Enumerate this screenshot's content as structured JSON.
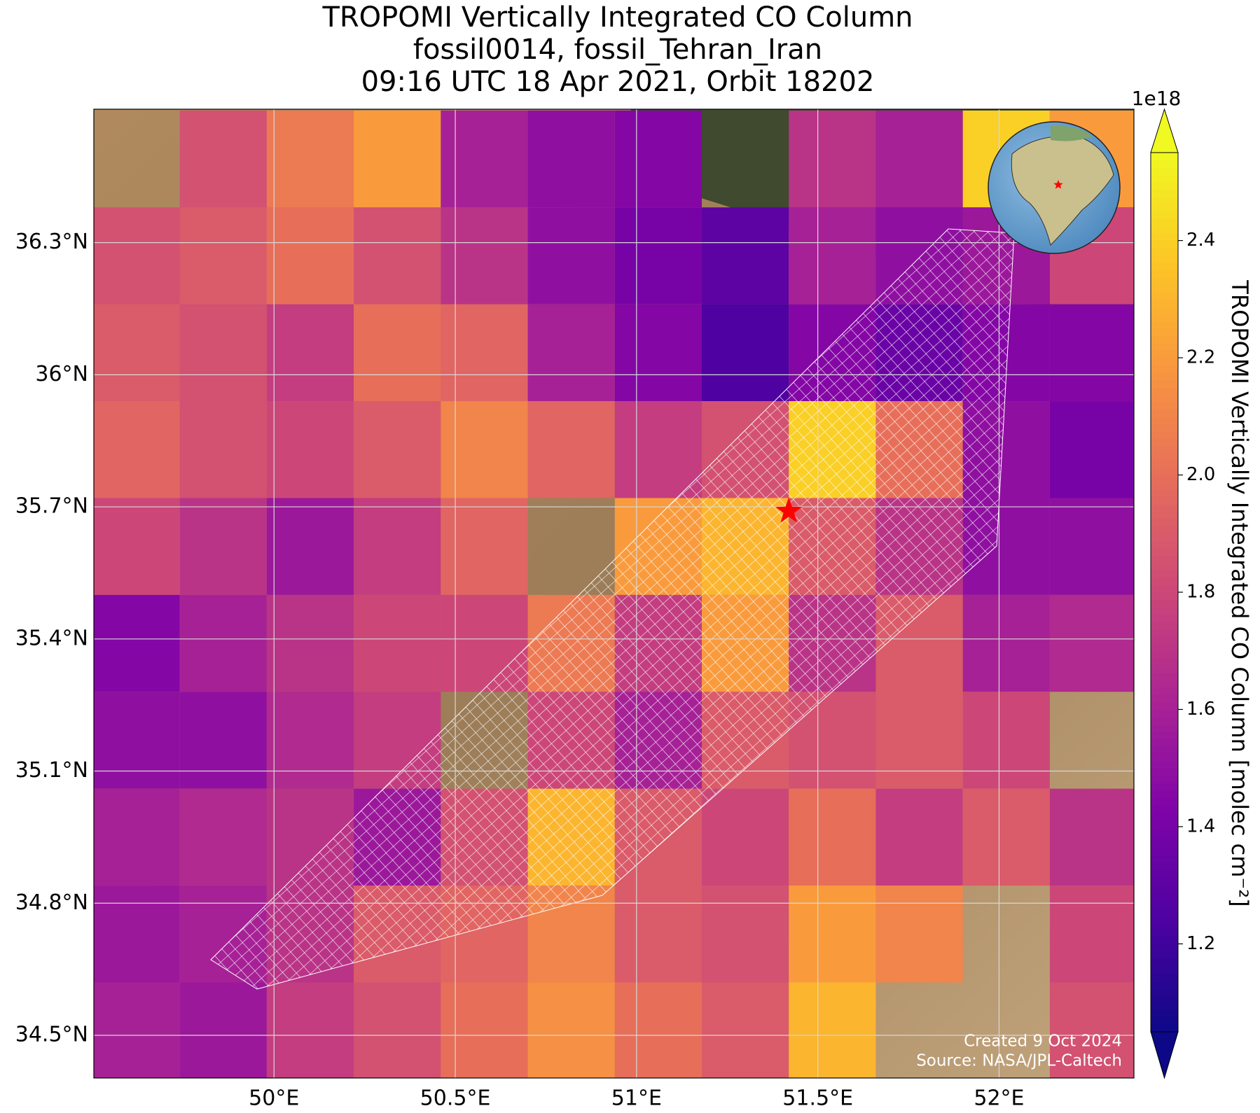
{
  "chart_data": {
    "type": "heatmap",
    "title": [
      "TROPOMI Vertically Integrated CO Column",
      "fossil0014, fossil_Tehran_Iran",
      "09:16 UTC 18 Apr 2021, Orbit 18202"
    ],
    "x": [
      49.62,
      49.86,
      50.1,
      50.34,
      50.58,
      50.82,
      51.06,
      51.3,
      51.54,
      51.78,
      52.02,
      52.26
    ],
    "y": [
      36.49,
      36.27,
      36.05,
      35.83,
      35.61,
      35.39,
      35.17,
      34.95,
      34.73,
      34.51
    ],
    "values": [
      [
        null,
        1.85,
        2.05,
        2.2,
        1.6,
        1.5,
        1.45,
        null,
        1.7,
        1.6,
        2.4,
        2.2
      ],
      [
        1.85,
        1.9,
        2.0,
        1.85,
        1.7,
        1.5,
        1.4,
        1.3,
        1.6,
        1.5,
        1.55,
        1.8
      ],
      [
        1.9,
        1.85,
        1.75,
        2.0,
        1.95,
        1.6,
        1.45,
        1.25,
        1.45,
        1.35,
        1.45,
        1.45
      ],
      [
        1.95,
        1.85,
        1.8,
        1.9,
        2.1,
        1.95,
        1.75,
        1.85,
        2.4,
        2.0,
        1.5,
        1.4
      ],
      [
        1.8,
        1.7,
        1.55,
        1.75,
        1.95,
        null,
        2.2,
        2.3,
        1.9,
        1.7,
        1.5,
        1.5
      ],
      [
        1.45,
        1.6,
        1.7,
        1.8,
        1.8,
        2.05,
        1.75,
        2.2,
        1.7,
        1.9,
        1.6,
        1.65
      ],
      [
        1.5,
        1.5,
        1.65,
        1.75,
        null,
        1.8,
        1.6,
        1.9,
        1.85,
        1.9,
        1.8,
        null
      ],
      [
        1.6,
        1.65,
        1.7,
        1.55,
        1.85,
        2.3,
        1.9,
        1.8,
        2.0,
        1.75,
        1.9,
        1.7
      ],
      [
        1.55,
        1.6,
        1.7,
        1.9,
        1.95,
        2.1,
        1.9,
        1.85,
        2.2,
        2.1,
        null,
        1.8
      ],
      [
        1.6,
        1.55,
        1.75,
        1.85,
        2.0,
        2.15,
        2.0,
        1.9,
        2.3,
        null,
        null,
        1.85
      ]
    ],
    "xlim": [
      49.503,
      52.372
    ],
    "ylim": [
      34.403,
      36.603
    ],
    "xticks": [
      {
        "value": 50,
        "label": "50°E"
      },
      {
        "value": 50.5,
        "label": "50.5°E"
      },
      {
        "value": 51,
        "label": "51°E"
      },
      {
        "value": 51.5,
        "label": "51.5°E"
      },
      {
        "value": 52,
        "label": "52°E"
      }
    ],
    "yticks": [
      {
        "value": 34.5,
        "label": "34.5°N"
      },
      {
        "value": 34.8,
        "label": "34.8°N"
      },
      {
        "value": 35.1,
        "label": "35.1°N"
      },
      {
        "value": 35.4,
        "label": "35.4°N"
      },
      {
        "value": 35.7,
        "label": "35.7°N"
      },
      {
        "value": 36,
        "label": "36°N"
      },
      {
        "value": 36.3,
        "label": "36.3°N"
      }
    ],
    "grid": true,
    "colormap": "plasma",
    "colorbar": {
      "label": "TROPOMI Vertically Integrated CO Column [molec cm⁻²]",
      "offset_label": "1e18",
      "clim": [
        1.05,
        2.55
      ],
      "extend": "both",
      "ticks": [
        1.2,
        1.4,
        1.6,
        1.8,
        {
          "value": 2,
          "label": "2.0"
        },
        2.2,
        2.4
      ]
    },
    "marker": {
      "lon": 51.42,
      "lat": 35.69,
      "color": "#ff0000"
    },
    "annotations": [
      "Created 9 Oct 2024",
      "Source: NASA/JPL-Caltech"
    ]
  }
}
